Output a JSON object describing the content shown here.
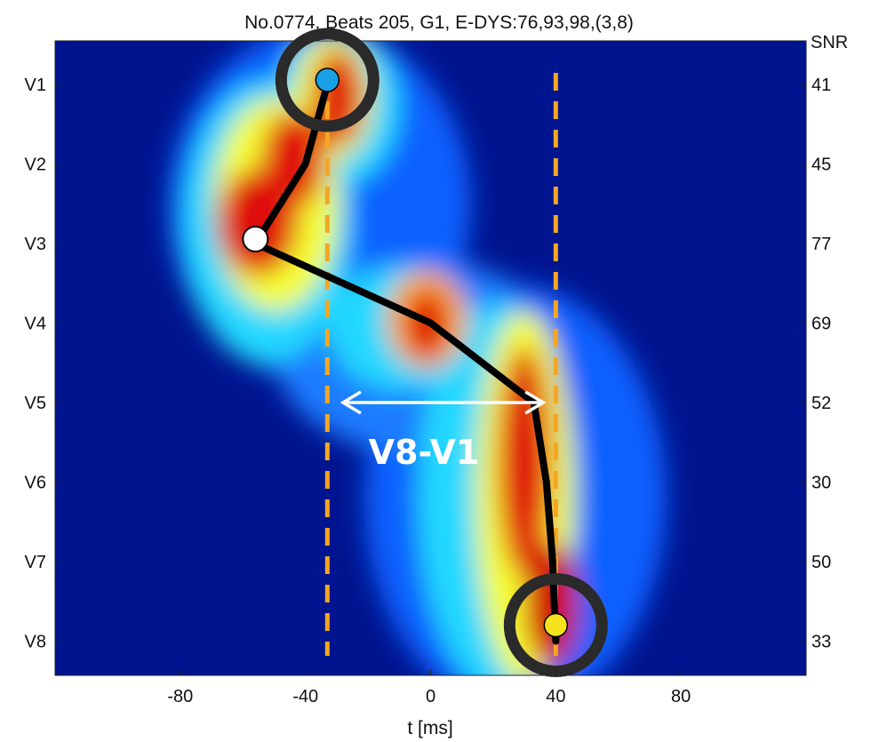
{
  "chart_data": {
    "type": "heatmap",
    "title": "No.0774, Beats 205, G1, E-DYS:76,93,98,(3,8)",
    "xlabel": "t  [ms]",
    "xlim": [
      -120,
      120
    ],
    "x_ticks": [
      -80,
      -40,
      0,
      40,
      80
    ],
    "y_categories": [
      "V1",
      "V2",
      "V3",
      "V4",
      "V5",
      "V6",
      "V7",
      "V8"
    ],
    "right_axis_title": "SNR",
    "snr_values": [
      "41",
      "45",
      "77",
      "69",
      "52",
      "30",
      "50",
      "33"
    ],
    "path": [
      {
        "lead": "V1",
        "t": -33
      },
      {
        "lead": "V2",
        "t": -40
      },
      {
        "lead": "V3",
        "t": -56
      },
      {
        "lead": "V4",
        "t": 0
      },
      {
        "lead": "V5",
        "t": 33
      },
      {
        "lead": "V6",
        "t": 37
      },
      {
        "lead": "V7",
        "t": 39
      },
      {
        "lead": "V8",
        "t": 40
      }
    ],
    "start_marker": {
      "lead": "V1",
      "t": -33,
      "color": "#1aa0e6"
    },
    "mid_marker": {
      "lead": "V3",
      "t": -56,
      "color": "#ffffff"
    },
    "end_marker": {
      "lead": "V8",
      "t": 40,
      "color": "#f7e21e"
    },
    "guide_lines_t": [
      -33,
      40
    ],
    "guide_color": "#f5a623",
    "interval_arrow": {
      "from_t": -28,
      "to_t": 36,
      "lead_position": 5,
      "label": "V8-V1"
    },
    "colormap": "jet"
  }
}
